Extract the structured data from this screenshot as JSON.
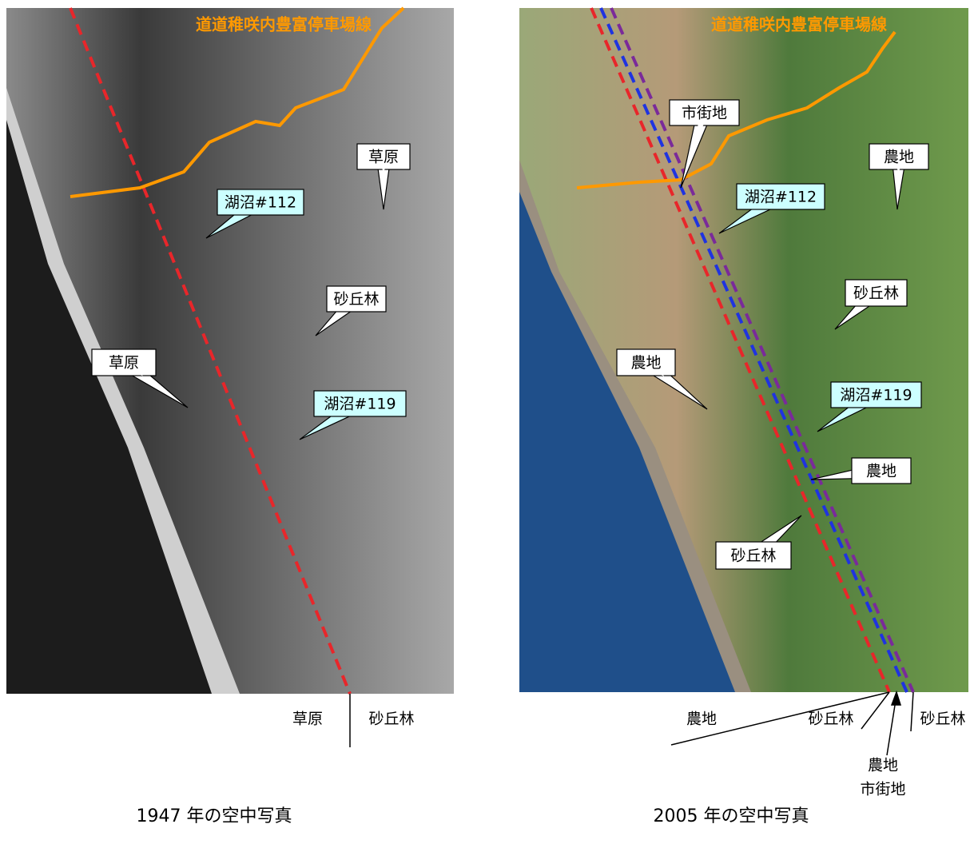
{
  "left": {
    "road_label": "道道稚咲内豊富停車場線",
    "callouts": [
      "草原",
      "湖沼#112",
      "砂丘林",
      "草原",
      "湖沼#119"
    ],
    "bottom_labels": [
      "草原",
      "砂丘林"
    ],
    "caption": "1947 年の空中写真"
  },
  "right": {
    "road_label": "道道稚咲内豊富停車場線",
    "callouts": [
      "市街地",
      "農地",
      "湖沼#112",
      "砂丘林",
      "農地",
      "湖沼#119",
      "農地",
      "砂丘林"
    ],
    "bottom_labels": [
      "農地",
      "砂丘林",
      "砂丘林",
      "農地",
      "市街地"
    ],
    "caption": "2005 年の空中写真"
  }
}
